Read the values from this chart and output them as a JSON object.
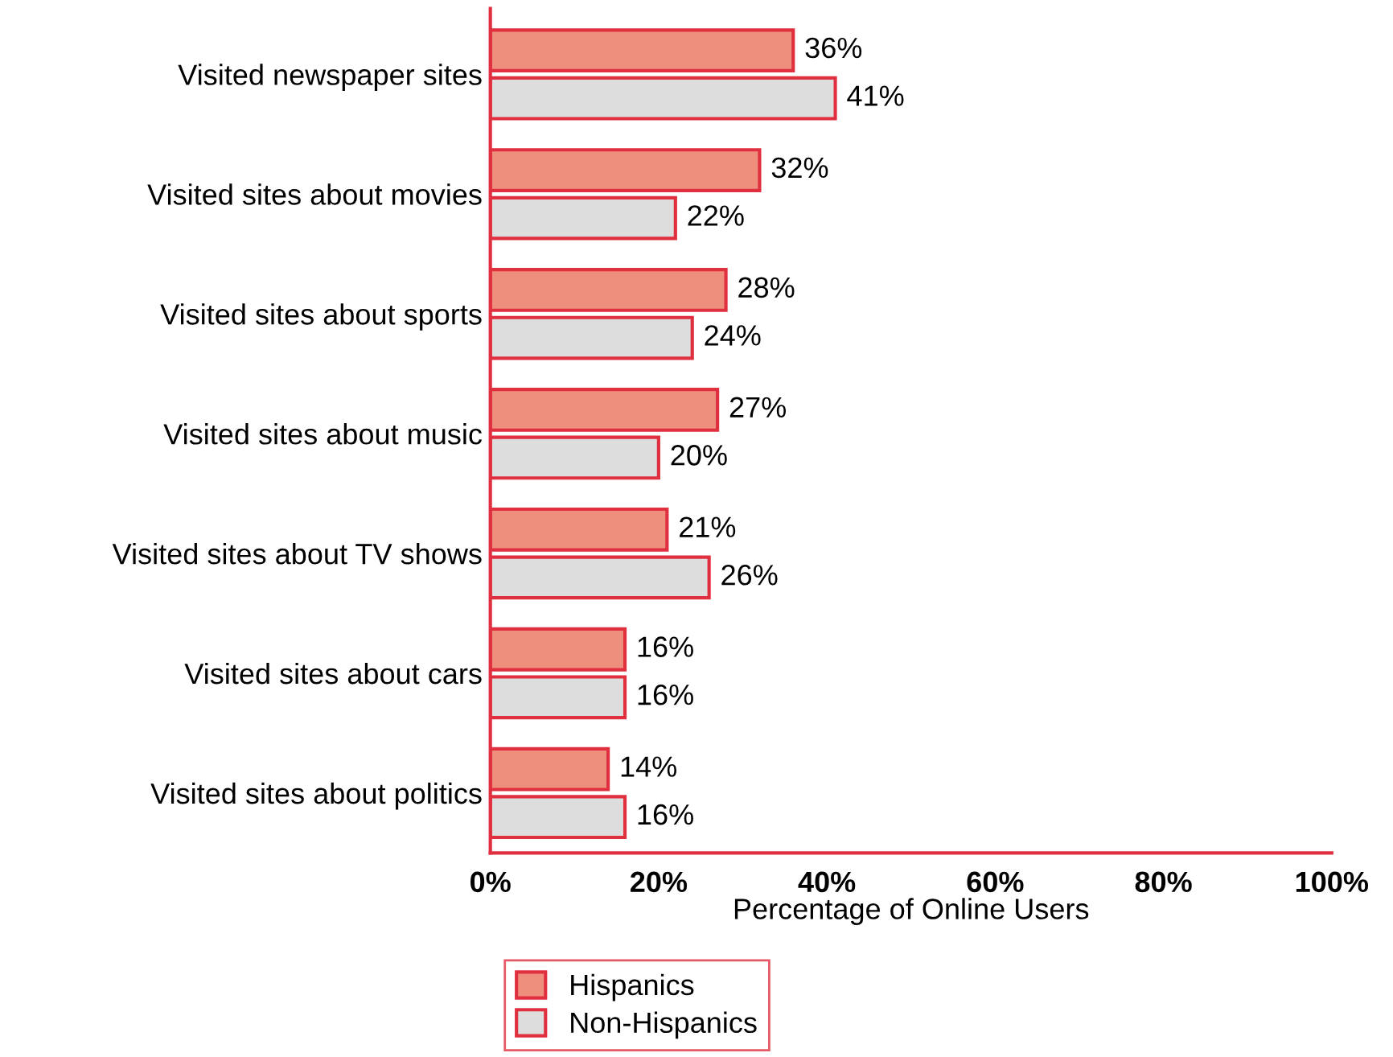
{
  "chart_data": {
    "type": "bar",
    "orientation": "horizontal",
    "xlabel": "Percentage of Online Users",
    "categories": [
      "Visited newspaper sites",
      "Visited sites about movies",
      "Visited sites about sports",
      "Visited sites about music",
      "Visited sites about TV shows",
      "Visited sites about cars",
      "Visited sites about politics"
    ],
    "series": [
      {
        "name": "Hispanics",
        "color": "#ee8e7c",
        "values": [
          36,
          32,
          28,
          27,
          21,
          16,
          14
        ],
        "value_labels": [
          "36%",
          "32%",
          "28%",
          "27%",
          "21%",
          "16%",
          "14%"
        ]
      },
      {
        "name": "Non-Hispanics",
        "color": "#dddddd",
        "values": [
          41,
          22,
          24,
          20,
          26,
          16,
          16
        ],
        "value_labels": [
          "41%",
          "22%",
          "24%",
          "20%",
          "26%",
          "16%",
          "16%"
        ]
      }
    ],
    "xlim": [
      0,
      100
    ],
    "xticks": [
      {
        "value": 0,
        "label": "0%"
      },
      {
        "value": 20,
        "label": "20%"
      },
      {
        "value": 40,
        "label": "40%"
      },
      {
        "value": 60,
        "label": "60%"
      },
      {
        "value": 80,
        "label": "80%"
      },
      {
        "value": 100,
        "label": "100%"
      }
    ],
    "grid": false,
    "legend": "bottom"
  }
}
